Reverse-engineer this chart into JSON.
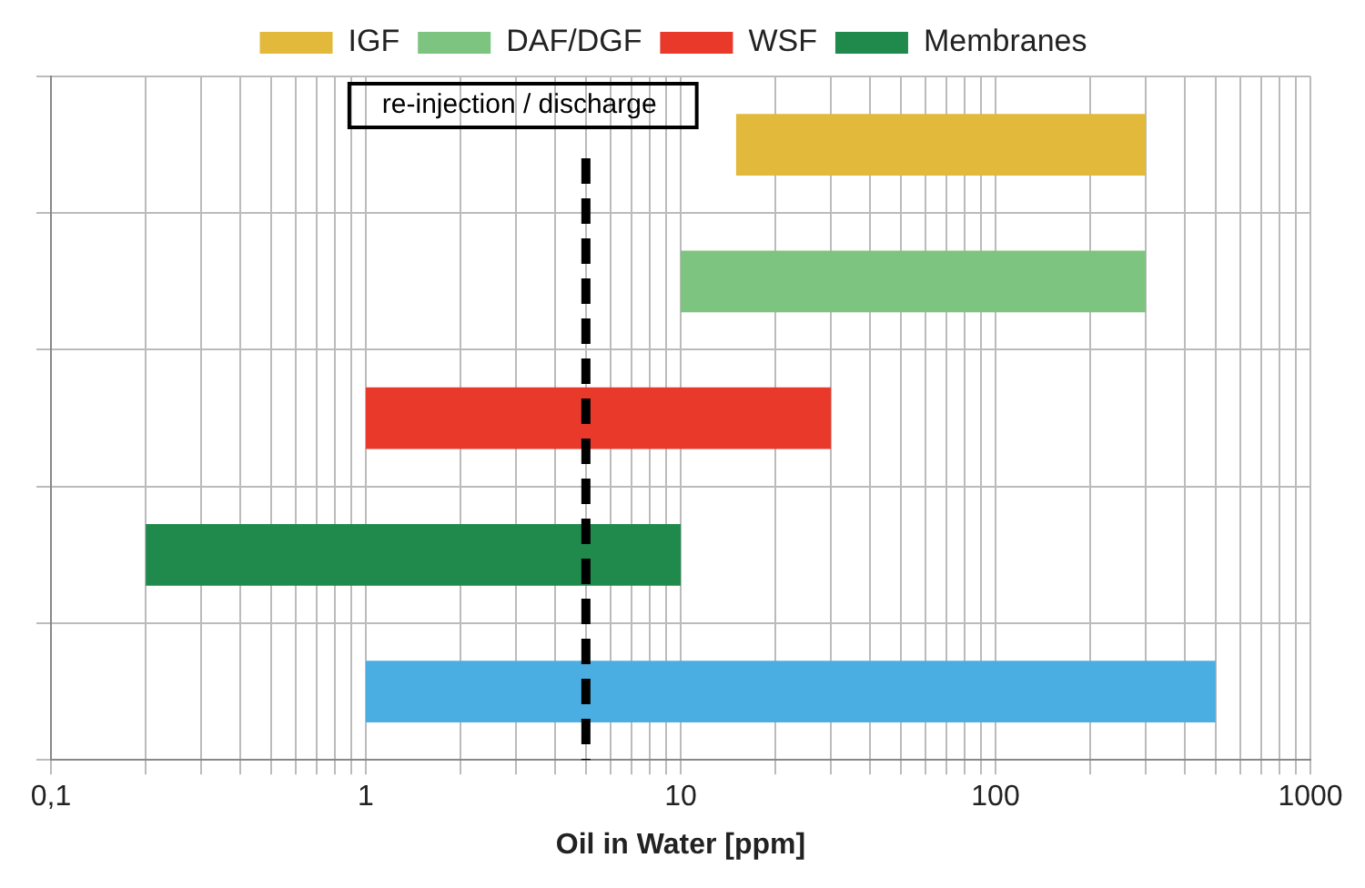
{
  "chart_data": {
    "type": "bar",
    "orientation": "horizontal",
    "xlabel": "Oil in Water [ppm]",
    "categories": [
      null,
      null,
      null,
      null,
      null
    ],
    "series": [
      {
        "name": "IGF",
        "color": "#e2b93b",
        "values": [
          285,
          null,
          null,
          null,
          null
        ],
        "base": [
          15,
          null,
          null,
          null,
          null
        ]
      },
      {
        "name": "DAF/DGF",
        "color": "#7cc47f",
        "values": [
          null,
          290,
          null,
          null,
          null
        ],
        "base": [
          null,
          10,
          null,
          null,
          null
        ]
      },
      {
        "name": "WSF",
        "color": "#e8392b",
        "values": [
          null,
          null,
          29,
          null,
          null
        ],
        "base": [
          null,
          null,
          1,
          null,
          null
        ]
      },
      {
        "name": "Membranes",
        "color": "#1f8a4c",
        "values": [
          null,
          null,
          null,
          9.8,
          null
        ],
        "base": [
          null,
          null,
          null,
          0.2,
          null
        ]
      },
      {
        "color": "#4aaee3",
        "values": [
          null,
          null,
          null,
          null,
          499
        ],
        "base": [
          null,
          null,
          null,
          null,
          1
        ]
      }
    ],
    "log": "x",
    "xlim": [
      0.1,
      1000
    ],
    "xticks": [
      {
        "value": 0.1,
        "label": "0,1"
      },
      {
        "value": 0.2,
        "label": null
      },
      {
        "value": 0.3,
        "label": null
      },
      {
        "value": 0.4,
        "label": null
      },
      {
        "value": 0.5,
        "label": null
      },
      {
        "value": 0.6,
        "label": null
      },
      {
        "value": 0.7,
        "label": null
      },
      {
        "value": 0.8,
        "label": null
      },
      {
        "value": 0.9,
        "label": null
      },
      1,
      {
        "value": 2,
        "label": null
      },
      {
        "value": 3,
        "label": null
      },
      {
        "value": 4,
        "label": null
      },
      {
        "value": 5,
        "label": null
      },
      {
        "value": 6,
        "label": null
      },
      {
        "value": 7,
        "label": null
      },
      {
        "value": 8,
        "label": null
      },
      {
        "value": 9,
        "label": null
      },
      10,
      {
        "value": 20,
        "label": null
      },
      {
        "value": 30,
        "label": null
      },
      {
        "value": 40,
        "label": null
      },
      {
        "value": 50,
        "label": null
      },
      {
        "value": 60,
        "label": null
      },
      {
        "value": 70,
        "label": null
      },
      {
        "value": 80,
        "label": null
      },
      {
        "value": 90,
        "label": null
      },
      100,
      {
        "value": 200,
        "label": null
      },
      {
        "value": 300,
        "label": null
      },
      {
        "value": 400,
        "label": null
      },
      {
        "value": 500,
        "label": null
      },
      {
        "value": 600,
        "label": null
      },
      {
        "value": 700,
        "label": null
      },
      {
        "value": 800,
        "label": null
      },
      {
        "value": 900,
        "label": null
      },
      1000
    ],
    "ref_lines": [
      {
        "axis": "x",
        "value": 5,
        "label": "re-injection / discharge",
        "color": "#000000",
        "line_style": "dashed"
      }
    ],
    "grid": true,
    "legend": "top"
  }
}
